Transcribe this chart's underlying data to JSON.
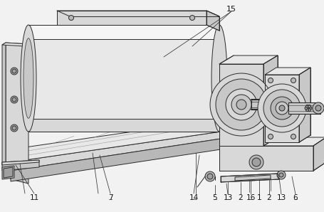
{
  "bg": "#f2f2f2",
  "lc": "#2a2a2a",
  "lw": 0.7,
  "gray1": "#e8e8e8",
  "gray2": "#d8d8d8",
  "gray3": "#c8c8c8",
  "gray4": "#b8b8b8",
  "gray5": "#a0a0a0",
  "white": "#f5f5f5"
}
